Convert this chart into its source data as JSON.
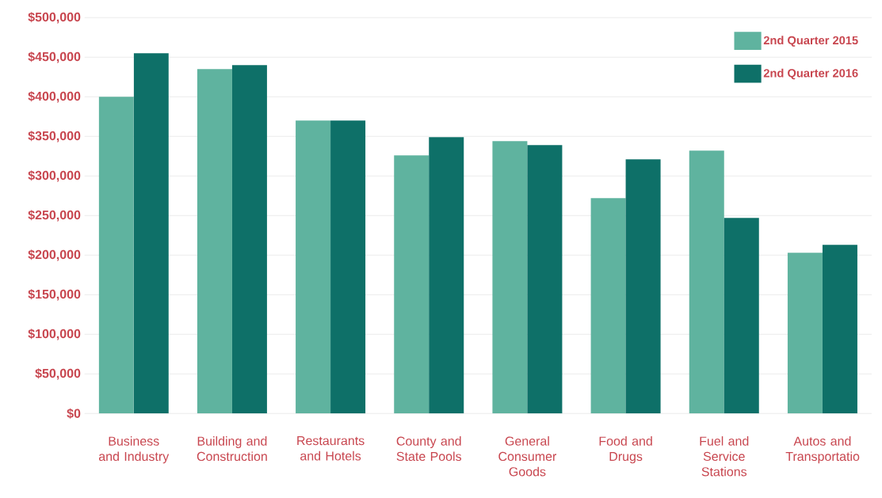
{
  "chart_data": {
    "type": "bar",
    "categories": [
      "Business and Industry",
      "Building and Construction",
      "Restaurants and Hotels",
      "County and State Pools",
      "General Consumer Goods",
      "Food and Drugs",
      "Fuel and Service Stations",
      "Autos and Transportatio"
    ],
    "series": [
      {
        "name": "2nd Quarter 2015",
        "color": "#5fb39f",
        "values": [
          400000,
          435000,
          370000,
          326000,
          344000,
          272000,
          332000,
          203000
        ]
      },
      {
        "name": "2nd Quarter 2016",
        "color": "#0e7068",
        "values": [
          455000,
          440000,
          370000,
          349000,
          339000,
          321000,
          247000,
          213000
        ]
      }
    ],
    "ylim": [
      0,
      500000
    ],
    "yticks": [
      {
        "value": 0,
        "label": "$0"
      },
      {
        "value": 50000,
        "label": "$50,000"
      },
      {
        "value": 100000,
        "label": "$100,000"
      },
      {
        "value": 150000,
        "label": "$150,000"
      },
      {
        "value": 200000,
        "label": "$200,000"
      },
      {
        "value": 250000,
        "label": "$250,000"
      },
      {
        "value": 300000,
        "label": "$300,000"
      },
      {
        "value": 350000,
        "label": "$350,000"
      },
      {
        "value": 400000,
        "label": "$400,000"
      },
      {
        "value": 450000,
        "label": "$450,000"
      },
      {
        "value": 500000,
        "label": "$500,000"
      }
    ],
    "grid": "y",
    "legend": "top right"
  }
}
